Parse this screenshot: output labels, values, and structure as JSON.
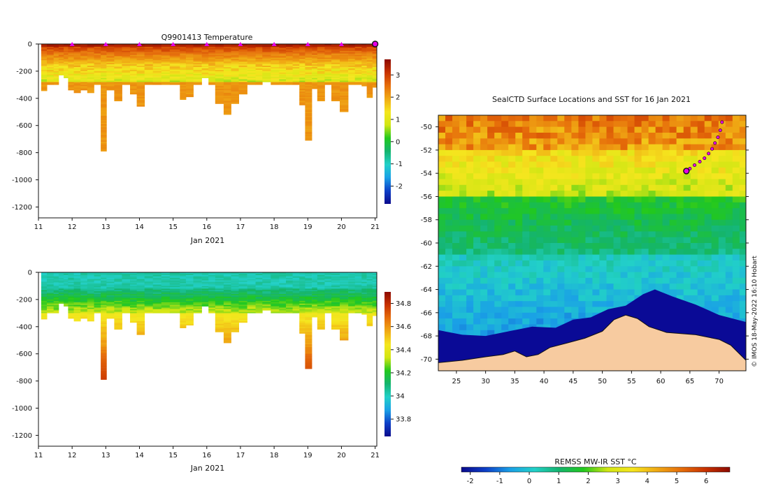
{
  "colors": {
    "ramp": [
      "#0a0a8c",
      "#0d3fc7",
      "#1aa0e6",
      "#22d0c8",
      "#14b46e",
      "#22c81e",
      "#d2e614",
      "#f5e61e",
      "#f0aa14",
      "#e66e0a",
      "#c83200",
      "#8c0a00"
    ],
    "land": "#f7cba0",
    "ice": "#ffffff",
    "deep_ocean": "#0a0a96",
    "track": "#e600e6"
  },
  "chart_data": [
    {
      "id": "temperature",
      "type": "heatmap",
      "title": "Q9901413  Temperature",
      "xlabel": "Jan 2021",
      "ylabel": "",
      "x_ticks": [
        11,
        12,
        13,
        14,
        15,
        16,
        17,
        18,
        19,
        20,
        21
      ],
      "x_tick_labels": [
        "11",
        "12",
        "13",
        "14",
        "15",
        "16",
        "17",
        "18",
        "19",
        "20",
        "21"
      ],
      "xlim": [
        11,
        21.05
      ],
      "y_ticks": [
        0,
        -200,
        -400,
        -600,
        -800,
        -1000,
        -1200
      ],
      "y_tick_labels": [
        "0",
        "-200",
        "-400",
        "-600",
        "-800",
        "-1000",
        "-1200"
      ],
      "ylim": [
        -1280,
        0
      ],
      "colorbar": {
        "min": -2.8,
        "max": 3.7,
        "ticks": [
          3,
          2,
          1,
          0,
          -1,
          -2
        ],
        "tick_labels": [
          "3",
          "2",
          "1",
          "0",
          "-1",
          "-2"
        ]
      },
      "surface_markers": [
        12,
        13,
        14,
        15,
        16,
        17,
        18,
        19,
        20
      ],
      "end_marker": 21.0,
      "profiles": [
        {
          "day": 11.08,
          "depth": 345
        },
        {
          "day": 11.25,
          "depth": 300
        },
        {
          "day": 11.45,
          "depth": 300
        },
        {
          "day": 11.6,
          "depth": 230
        },
        {
          "day": 11.75,
          "depth": 250
        },
        {
          "day": 11.88,
          "depth": 340
        },
        {
          "day": 12.05,
          "depth": 360
        },
        {
          "day": 12.25,
          "depth": 340
        },
        {
          "day": 12.45,
          "depth": 360
        },
        {
          "day": 12.65,
          "depth": 300
        },
        {
          "day": 12.85,
          "depth": 790
        },
        {
          "day": 13.02,
          "depth": 340
        },
        {
          "day": 13.25,
          "depth": 420
        },
        {
          "day": 13.48,
          "depth": 300
        },
        {
          "day": 13.72,
          "depth": 370
        },
        {
          "day": 13.92,
          "depth": 460
        },
        {
          "day": 14.15,
          "depth": 300
        },
        {
          "day": 14.4,
          "depth": 300
        },
        {
          "day": 14.65,
          "depth": 300
        },
        {
          "day": 14.9,
          "depth": 300
        },
        {
          "day": 15.2,
          "depth": 410
        },
        {
          "day": 15.38,
          "depth": 390
        },
        {
          "day": 15.6,
          "depth": 300
        },
        {
          "day": 15.85,
          "depth": 250
        },
        {
          "day": 16.05,
          "depth": 300
        },
        {
          "day": 16.25,
          "depth": 440
        },
        {
          "day": 16.5,
          "depth": 520
        },
        {
          "day": 16.72,
          "depth": 440
        },
        {
          "day": 16.95,
          "depth": 370
        },
        {
          "day": 17.2,
          "depth": 300
        },
        {
          "day": 17.45,
          "depth": 300
        },
        {
          "day": 17.65,
          "depth": 280
        },
        {
          "day": 17.9,
          "depth": 300
        },
        {
          "day": 18.15,
          "depth": 300
        },
        {
          "day": 18.35,
          "depth": 300
        },
        {
          "day": 18.55,
          "depth": 300
        },
        {
          "day": 18.75,
          "depth": 450
        },
        {
          "day": 18.92,
          "depth": 710
        },
        {
          "day": 19.12,
          "depth": 330
        },
        {
          "day": 19.28,
          "depth": 420
        },
        {
          "day": 19.5,
          "depth": 300
        },
        {
          "day": 19.7,
          "depth": 420
        },
        {
          "day": 19.95,
          "depth": 500
        },
        {
          "day": 20.2,
          "depth": 300
        },
        {
          "day": 20.4,
          "depth": 300
        },
        {
          "day": 20.6,
          "depth": 310
        },
        {
          "day": 20.75,
          "depth": 395
        },
        {
          "day": 20.92,
          "depth": 320
        }
      ]
    },
    {
      "id": "salinity",
      "type": "heatmap",
      "title": "",
      "xlabel": "Jan 2021",
      "ylabel": "",
      "x_ticks": [
        11,
        12,
        13,
        14,
        15,
        16,
        17,
        18,
        19,
        20,
        21
      ],
      "x_tick_labels": [
        "11",
        "12",
        "13",
        "14",
        "15",
        "16",
        "17",
        "18",
        "19",
        "20",
        "21"
      ],
      "xlim": [
        11,
        21.05
      ],
      "y_ticks": [
        0,
        -200,
        -400,
        -600,
        -800,
        -1000,
        -1200
      ],
      "y_tick_labels": [
        "0",
        "-200",
        "-400",
        "-600",
        "-800",
        "-1000",
        "-1200"
      ],
      "ylim": [
        -1280,
        0
      ],
      "colorbar": {
        "min": 33.65,
        "max": 34.9,
        "ticks": [
          34.8,
          34.6,
          34.4,
          34.2,
          34,
          33.8
        ],
        "tick_labels": [
          "34.8",
          "34.6",
          "34.4",
          "34.2",
          "34",
          "33.8"
        ]
      }
    },
    {
      "id": "sst_map",
      "type": "heatmap",
      "title": "SealCTD Surface Locations and SST for 16 Jan 2021",
      "xlabel": "",
      "ylabel": "",
      "x_ticks": [
        25,
        30,
        35,
        40,
        45,
        50,
        55,
        60,
        65,
        70
      ],
      "x_tick_labels": [
        "25",
        "30",
        "35",
        "40",
        "45",
        "50",
        "55",
        "60",
        "65",
        "70"
      ],
      "xlim": [
        21.9,
        74.6
      ],
      "y_ticks": [
        -50,
        -52,
        -54,
        -56,
        -58,
        -60,
        -62,
        -64,
        -66,
        -68,
        -70
      ],
      "y_tick_labels": [
        "-50",
        "-52",
        "-54",
        "-56",
        "-58",
        "-60",
        "-62",
        "-64",
        "-66",
        "-68",
        "-70"
      ],
      "ylim": [
        -71.0,
        -49.0
      ],
      "track": [
        {
          "lon": 70.5,
          "lat": -49.6
        },
        {
          "lon": 70.2,
          "lat": -50.3
        },
        {
          "lon": 69.8,
          "lat": -50.9
        },
        {
          "lon": 69.3,
          "lat": -51.4
        },
        {
          "lon": 68.8,
          "lat": -51.9
        },
        {
          "lon": 68.2,
          "lat": -52.3
        },
        {
          "lon": 67.5,
          "lat": -52.7
        },
        {
          "lon": 66.7,
          "lat": -53.0
        },
        {
          "lon": 65.8,
          "lat": -53.3
        },
        {
          "lon": 65.0,
          "lat": -53.6
        },
        {
          "lon": 64.4,
          "lat": -53.8
        }
      ],
      "current_position": {
        "lon": 64.4,
        "lat": -53.8
      },
      "credit": "© IMOS 18-May-2022 16:10 Hobart"
    },
    {
      "id": "sst_colorbar",
      "type": "heatmap",
      "title": "REMSS MW-IR SST °C",
      "colorbar": {
        "min": -2.3,
        "max": 6.8,
        "ticks": [
          -2,
          -1,
          0,
          1,
          2,
          3,
          4,
          5,
          6
        ],
        "tick_labels": [
          "-2",
          "-1",
          "0",
          "1",
          "2",
          "3",
          "4",
          "5",
          "6"
        ]
      }
    }
  ]
}
